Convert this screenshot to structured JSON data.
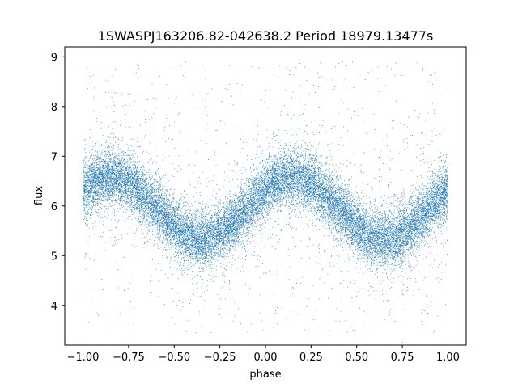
{
  "chart_data": {
    "type": "scatter",
    "title": "1SWASPJ163206.82-042638.2 Period 18979.13477s",
    "xlabel": "phase",
    "ylabel": "flux",
    "xlim": [
      -1.1,
      1.1
    ],
    "ylim": [
      3.2,
      9.2
    ],
    "xticks": [
      -1.0,
      -0.75,
      -0.5,
      -0.25,
      0.0,
      0.25,
      0.5,
      0.75,
      1.0
    ],
    "xtick_labels": [
      "−1.00",
      "−0.75",
      "−0.50",
      "−0.25",
      "0.00",
      "0.25",
      "0.50",
      "0.75",
      "1.00"
    ],
    "yticks": [
      4,
      5,
      6,
      7,
      8,
      9
    ],
    "ytick_labels": [
      "4",
      "5",
      "6",
      "7",
      "8",
      "9"
    ],
    "grid": false,
    "legend": "none",
    "marker_color": "#1f77b4",
    "series": [
      {
        "model": "sinusoid",
        "x_range": [
          -1.0,
          1.0
        ],
        "mean_flux": 5.95,
        "amplitude": 0.62,
        "maximum_phases": [
          -0.85,
          0.15
        ],
        "minimum_phases": [
          -0.35,
          0.65
        ],
        "core_scatter": 0.28,
        "outlier_range": [
          3.45,
          8.9
        ],
        "approx_point_count": 22000
      }
    ]
  }
}
